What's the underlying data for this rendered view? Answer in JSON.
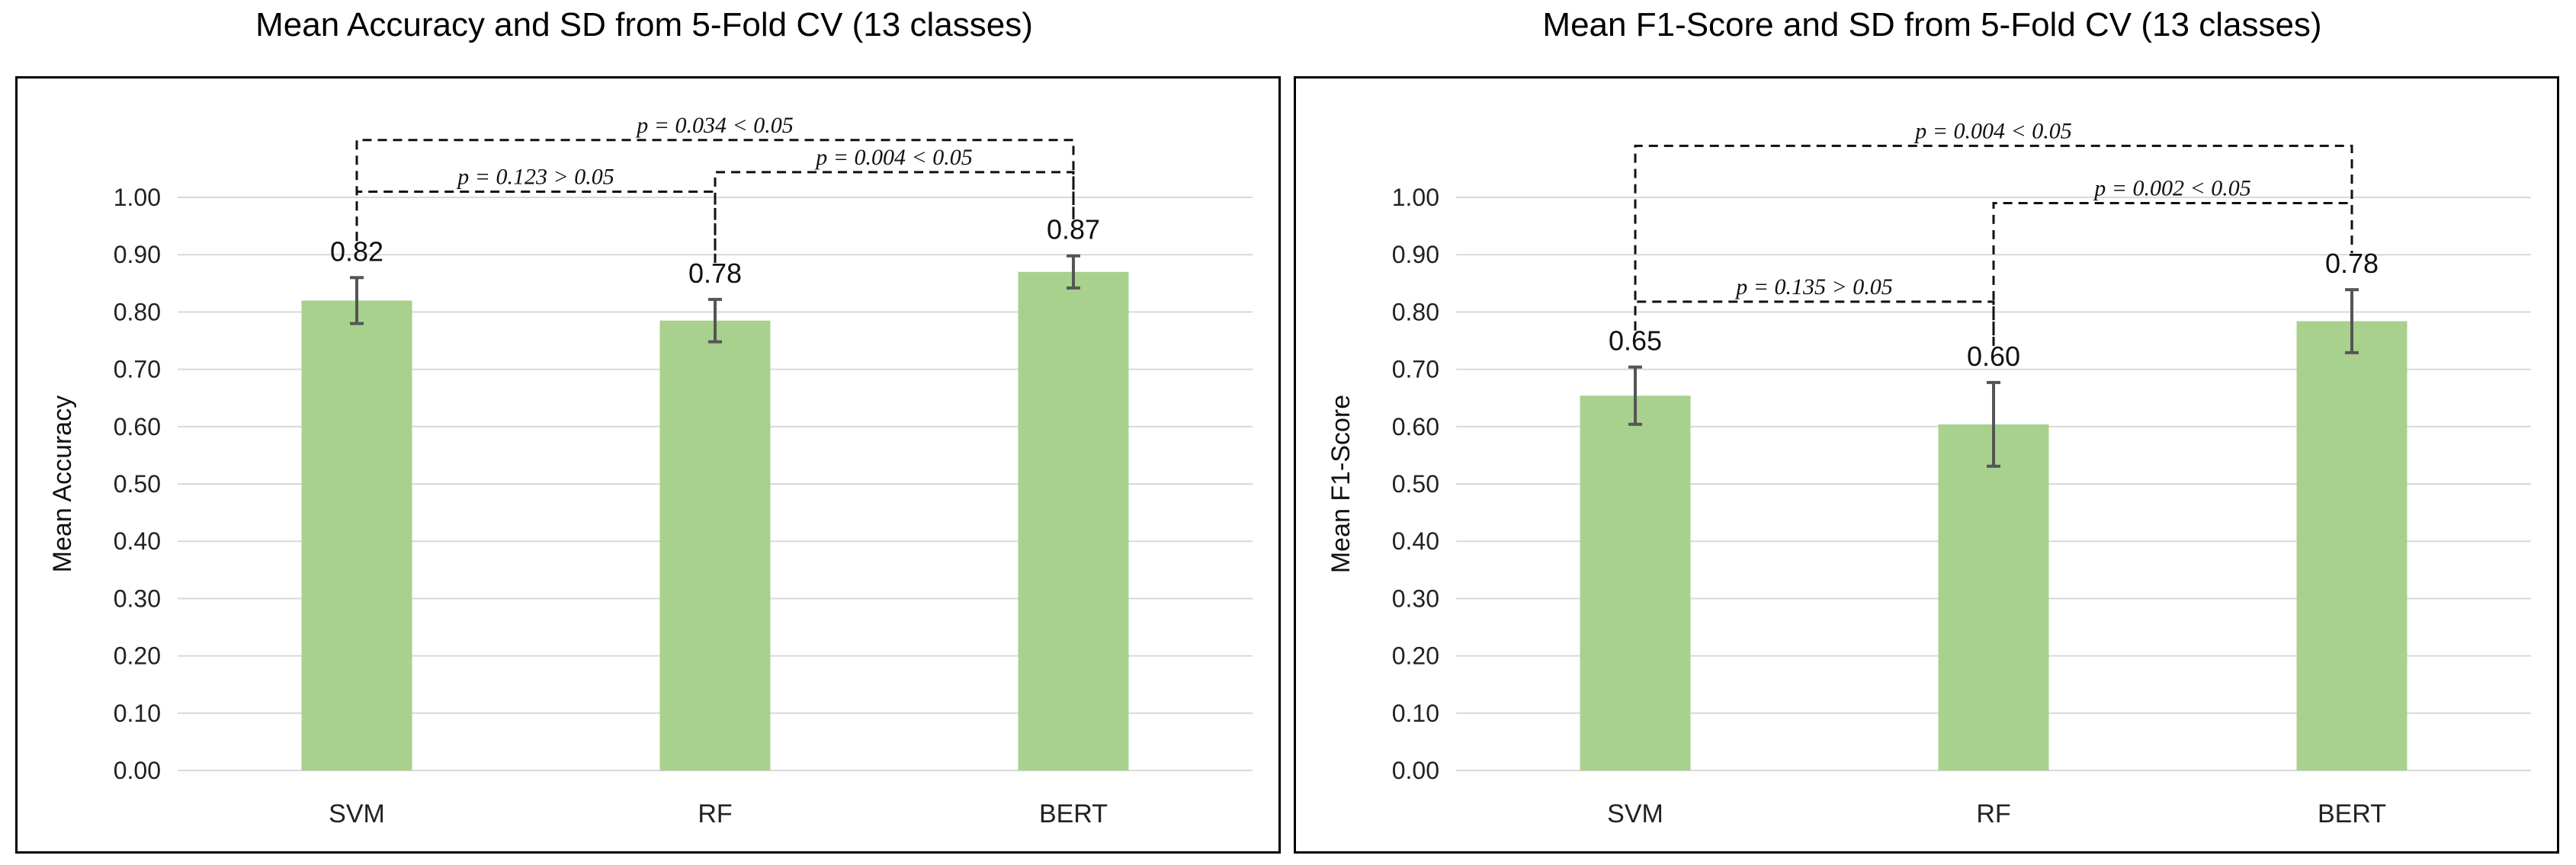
{
  "chart_data": [
    {
      "type": "bar",
      "title": "Mean Accuracy and SD from 5-Fold CV (13 classes)",
      "xlabel": "",
      "ylabel": "Mean Accuracy",
      "ylim": [
        0,
        1.0
      ],
      "yticks": [
        "0.00",
        "0.10",
        "0.20",
        "0.30",
        "0.40",
        "0.50",
        "0.60",
        "0.70",
        "0.80",
        "0.90",
        "1.00"
      ],
      "categories": [
        "SVM",
        "RF",
        "BERT"
      ],
      "values": [
        0.82,
        0.785,
        0.87
      ],
      "value_labels": [
        "0.82",
        "0.78",
        "0.87"
      ],
      "errors": [
        0.04,
        0.037,
        0.028
      ],
      "bar_color": "#a9d18e",
      "significance": [
        {
          "from": 0,
          "to": 2,
          "level": 1.1,
          "label": "p = 0.034 <  0.05"
        },
        {
          "from": 0,
          "to": 1,
          "level": 1.01,
          "label": "p = 0.123 >  0.05"
        },
        {
          "from": 1,
          "to": 2,
          "level": 1.044,
          "label": "p = 0.004 <  0.05"
        }
      ]
    },
    {
      "type": "bar",
      "title": "Mean F1-Score and SD from 5-Fold CV (13 classes)",
      "xlabel": "",
      "ylabel": "Mean F1-Score",
      "ylim": [
        0,
        1.0
      ],
      "yticks": [
        "0.00",
        "0.10",
        "0.20",
        "0.30",
        "0.40",
        "0.50",
        "0.60",
        "0.70",
        "0.80",
        "0.90",
        "1.00"
      ],
      "categories": [
        "SVM",
        "RF",
        "BERT"
      ],
      "values": [
        0.654,
        0.604,
        0.784
      ],
      "value_labels": [
        "0.65",
        "0.60",
        "0.78"
      ],
      "errors": [
        0.05,
        0.073,
        0.055
      ],
      "bar_color": "#a9d18e",
      "significance": [
        {
          "from": 0,
          "to": 2,
          "level": 1.09,
          "label": "p = 0.004 <  0.05"
        },
        {
          "from": 1,
          "to": 2,
          "level": 0.99,
          "label": "p = 0.002 <  0.05"
        },
        {
          "from": 0,
          "to": 1,
          "level": 0.818,
          "label": "p = 0.135 >  0.05"
        }
      ]
    }
  ]
}
